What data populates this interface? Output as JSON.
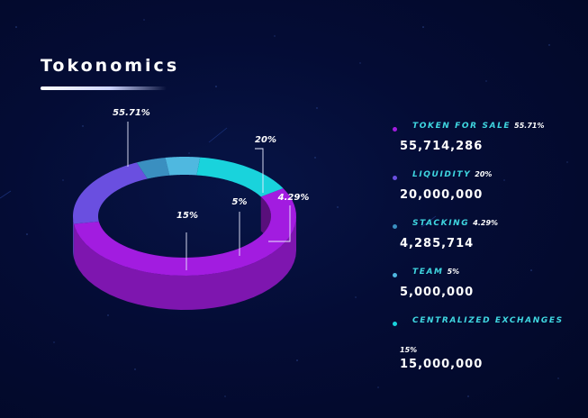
{
  "page": {
    "title": "Tokonomics"
  },
  "colors": {
    "background": "#030a2e",
    "token_for_sale": "#a21ce0",
    "liquidity": "#6a4fe0",
    "stacking": "#3a8fc0",
    "team": "#4fb8e0",
    "centralized_exchanges": "#19d3dc",
    "legend_text": "#3fd6e0"
  },
  "legend": [
    {
      "name": "TOKEN FOR SALE",
      "pct": "55.71%",
      "amount": "55,714,286",
      "color": "#a21ce0",
      "dot": "purple-dot-icon"
    },
    {
      "name": "LIQUIDITY",
      "pct": "20%",
      "amount": "20,000,000",
      "color": "#6a4fe0",
      "dot": "violet-dot-icon"
    },
    {
      "name": "STACKING",
      "pct": "4.29%",
      "amount": "4,285,714",
      "color": "#3a8fc0",
      "dot": "steel-blue-dot-icon"
    },
    {
      "name": "TEAM",
      "pct": "5%",
      "amount": "5,000,000",
      "color": "#4fb8e0",
      "dot": "light-blue-dot-icon"
    },
    {
      "name": "CENTRALIZED EXCHANGES",
      "pct": "15%",
      "amount": "15,000,000",
      "color": "#19d3dc",
      "dot": "cyan-dot-icon"
    }
  ],
  "chart_data": {
    "type": "pie",
    "style": "3d-donut",
    "title": "Tokonomics",
    "categories": [
      "TOKEN FOR SALE",
      "LIQUIDITY",
      "STACKING",
      "TEAM",
      "CENTRALIZED EXCHANGES"
    ],
    "values": [
      55.71,
      20,
      4.29,
      5,
      15
    ],
    "data_labels": [
      "55.71%",
      "20%",
      "4.29%",
      "5%",
      "15%"
    ],
    "amounts": [
      55714286,
      20000000,
      4285714,
      5000000,
      15000000
    ],
    "legend_position": "right"
  }
}
